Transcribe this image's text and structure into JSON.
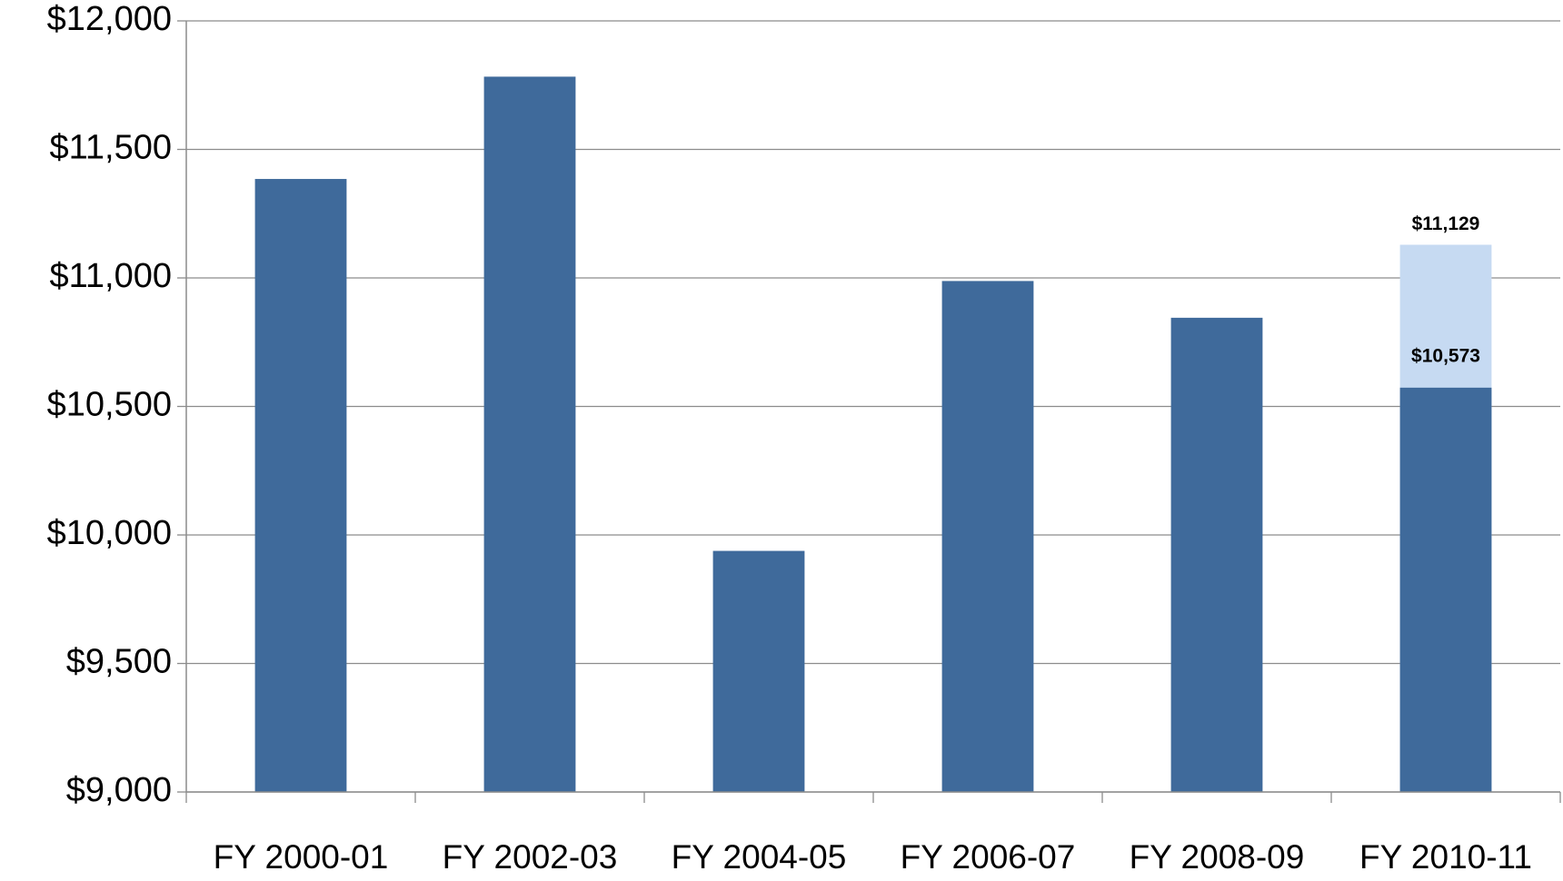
{
  "chart_data": {
    "type": "bar",
    "categories": [
      "FY 2000-01",
      "FY 2002-03",
      "FY 2004-05",
      "FY 2006-07",
      "FY 2008-09",
      "FY 2010-11"
    ],
    "series": [
      {
        "color": "#c6daf2",
        "values": [
          null,
          null,
          null,
          null,
          null,
          11129
        ],
        "value_labels": [
          null,
          null,
          null,
          null,
          null,
          "$11,129"
        ]
      },
      {
        "color": "#3f6a9b",
        "values": [
          11385,
          11783,
          9938,
          10988,
          10845,
          10573
        ],
        "value_labels": [
          null,
          null,
          null,
          null,
          null,
          "$10,573"
        ]
      }
    ],
    "ylim": [
      9000,
      12000
    ],
    "yticks": [
      {
        "value": 9000,
        "label": "$9,000"
      },
      {
        "value": 9500,
        "label": "$9,500"
      },
      {
        "value": 10000,
        "label": "$10,000"
      },
      {
        "value": 10500,
        "label": "$10,500"
      },
      {
        "value": 11000,
        "label": "$11,000"
      },
      {
        "value": 11500,
        "label": "$11,500"
      },
      {
        "value": 12000,
        "label": "$12,000"
      }
    ],
    "grid": true
  }
}
